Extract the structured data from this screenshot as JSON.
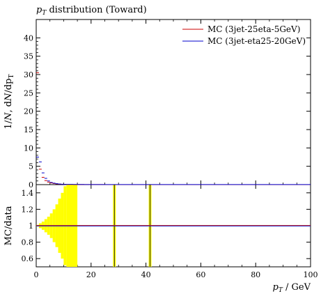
{
  "title_main": "p",
  "title_sub": "T",
  "title_rest": " distribution (Toward)",
  "chart_data": [
    {
      "type": "line",
      "panel": "main",
      "ylabel": "1/N dN/dpT",
      "xlim": [
        0,
        100
      ],
      "ylim": [
        0,
        45
      ],
      "yticks": [
        0,
        5,
        10,
        15,
        20,
        25,
        30,
        35,
        40
      ],
      "ytick_labels": [
        "0",
        "5",
        "10",
        "15",
        "20",
        "25",
        "30",
        "35",
        "40"
      ],
      "series": [
        {
          "name": "MC (3jet-25eta-5GeV)",
          "color": "#cc0000",
          "x": [
            0.5,
            1.5,
            2.5,
            3.5,
            4.5,
            5.5,
            6.5,
            7.5,
            8.5,
            9.5,
            10.5,
            12,
            15,
            20,
            30,
            40,
            50,
            60,
            70,
            80,
            90,
            100
          ],
          "y": [
            30.5,
            4.2,
            2.0,
            1.1,
            0.7,
            0.45,
            0.3,
            0.2,
            0.14,
            0.1,
            0.07,
            0.05,
            0.03,
            0.02,
            0.01,
            0.01,
            0.01,
            0.01,
            0.01,
            0.01,
            0.01,
            0.01
          ]
        },
        {
          "name": "MC (3jet-eta25-20GeV)",
          "color": "#0000cc",
          "x": [
            0.5,
            1.5,
            2.5,
            3.5,
            4.5,
            5.5,
            6.5,
            7.5,
            8.5,
            9.5,
            10.5,
            12,
            15,
            20,
            30,
            40,
            50,
            60,
            70,
            80,
            90,
            100
          ],
          "y": [
            7.5,
            6.2,
            3.2,
            1.7,
            1.0,
            0.6,
            0.4,
            0.25,
            0.17,
            0.12,
            0.08,
            0.06,
            0.04,
            0.03,
            0.02,
            0.02,
            0.02,
            0.02,
            0.02,
            0.02,
            0.02,
            0.02
          ]
        }
      ]
    },
    {
      "type": "bar",
      "panel": "ratio",
      "ylabel": "MC/data",
      "xlabel": "pT / GeV",
      "xlim": [
        0,
        100
      ],
      "ylim": [
        0.5,
        1.5
      ],
      "xticks": [
        0,
        20,
        40,
        60,
        80,
        100
      ],
      "xtick_labels": [
        "0",
        "20",
        "40",
        "60",
        "80",
        "100"
      ],
      "yticks": [
        0.6,
        0.8,
        1.0,
        1.2,
        1.4
      ],
      "ytick_labels": [
        "0.6",
        "0.8",
        "1",
        "1.2",
        "1.4"
      ],
      "band_color": "#ffff00",
      "band": [
        {
          "x0": 0,
          "x1": 1,
          "lo": 0.99,
          "hi": 1.01
        },
        {
          "x0": 1,
          "x1": 2,
          "lo": 0.97,
          "hi": 1.03
        },
        {
          "x0": 2,
          "x1": 3,
          "lo": 0.95,
          "hi": 1.05
        },
        {
          "x0": 3,
          "x1": 4,
          "lo": 0.92,
          "hi": 1.08
        },
        {
          "x0": 4,
          "x1": 5,
          "lo": 0.89,
          "hi": 1.11
        },
        {
          "x0": 5,
          "x1": 6,
          "lo": 0.85,
          "hi": 1.15
        },
        {
          "x0": 6,
          "x1": 7,
          "lo": 0.8,
          "hi": 1.2
        },
        {
          "x0": 7,
          "x1": 8,
          "lo": 0.74,
          "hi": 1.26
        },
        {
          "x0": 8,
          "x1": 9,
          "lo": 0.67,
          "hi": 1.33
        },
        {
          "x0": 9,
          "x1": 10,
          "lo": 0.6,
          "hi": 1.4
        },
        {
          "x0": 10,
          "x1": 11,
          "lo": 0.52,
          "hi": 1.48
        },
        {
          "x0": 11,
          "x1": 15,
          "lo": 0.5,
          "hi": 1.5
        },
        {
          "x0": 28,
          "x1": 29,
          "lo": 0.5,
          "hi": 1.5
        },
        {
          "x0": 41,
          "x1": 42,
          "lo": 0.5,
          "hi": 1.5
        }
      ],
      "ratio_line": 1.0
    }
  ],
  "legend": [
    {
      "label": "MC (3jet-25eta-5GeV)",
      "color": "#cc0000"
    },
    {
      "label": "MC (3jet-eta25-20GeV)",
      "color": "#0000cc"
    }
  ]
}
